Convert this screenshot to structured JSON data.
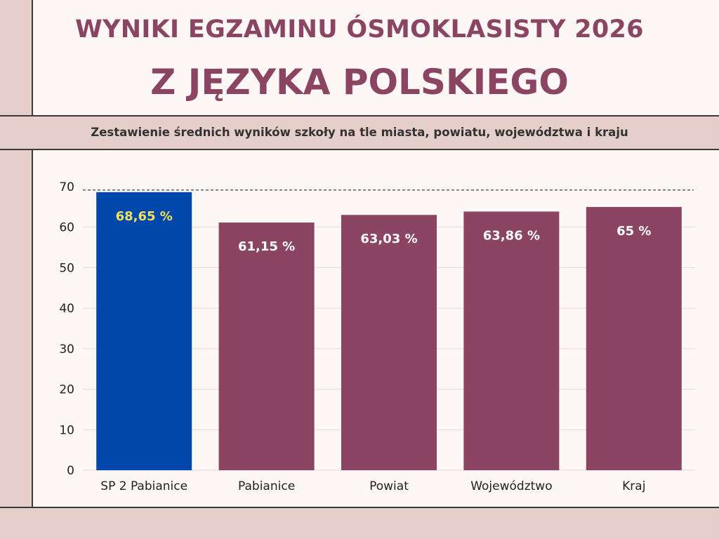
{
  "header": {
    "title_line1": "WYNIKI EGZAMINU ÓSMOKLASISTY 2026",
    "title_line2": "Z JĘZYKA POLSKIEGO",
    "subtitle": "Zestawienie średnich wyników szkoły na tle miasta, powiatu, województwa i kraju"
  },
  "colors": {
    "title": "#8b4562",
    "background": "#fdf7f5",
    "band": "#e6cfca",
    "highlight_bar": "#0047ab",
    "bar": "#8b4562",
    "highlight_label": "#f2e25a",
    "label": "#ffffff"
  },
  "chart_data": {
    "type": "bar",
    "categories": [
      "SP 2 Pabianice",
      "Pabianice",
      "Powiat",
      "Województwo",
      "Kraj"
    ],
    "values": [
      68.65,
      61.15,
      63.03,
      63.86,
      65
    ],
    "value_labels": [
      "68,65 %",
      "61,15 %",
      "63,03 %",
      "63,86 %",
      "65 %"
    ],
    "highlight_index": 0,
    "ylim": [
      0,
      70
    ],
    "yticks": [
      0,
      10,
      20,
      30,
      40,
      50,
      60,
      70
    ],
    "reference_line": 68.65,
    "grid": true,
    "xlabel": "",
    "ylabel": ""
  }
}
